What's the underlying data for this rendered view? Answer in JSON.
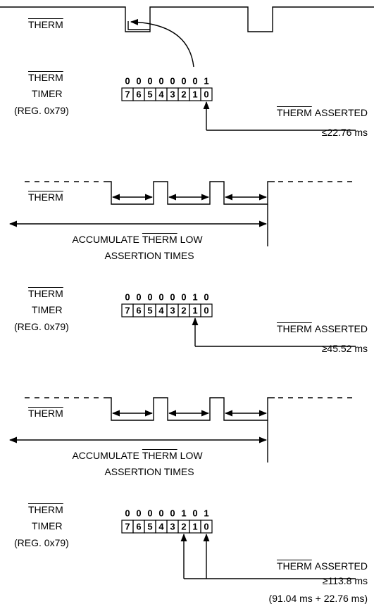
{
  "top_signal": {
    "label": "THERM"
  },
  "registers": [
    {
      "name": "THERM",
      "line2": "TIMER",
      "line3": "(REG. 0x79)",
      "bits": [
        0,
        0,
        0,
        0,
        0,
        0,
        0,
        1
      ],
      "indices": [
        7,
        6,
        5,
        4,
        3,
        2,
        1,
        0
      ],
      "asserted": [
        "THERM",
        "ASSERTED"
      ],
      "time": "≤22.76 ms"
    },
    {
      "name": "THERM",
      "line2": "TIMER",
      "line3": "(REG. 0x79)",
      "bits": [
        0,
        0,
        0,
        0,
        0,
        0,
        1,
        0
      ],
      "indices": [
        7,
        6,
        5,
        4,
        3,
        2,
        1,
        0
      ],
      "asserted": [
        "THERM",
        "ASSERTED"
      ],
      "time": "≥45.52 ms"
    },
    {
      "name": "THERM",
      "line2": "TIMER",
      "line3": "(REG. 0x79)",
      "bits": [
        0,
        0,
        0,
        0,
        0,
        1,
        0,
        1
      ],
      "indices": [
        7,
        6,
        5,
        4,
        3,
        2,
        1,
        0
      ],
      "asserted": [
        "THERM",
        "ASSERTED"
      ],
      "time": "≥113.8 ms",
      "note": "(91.04 ms + 22.76 ms)"
    }
  ],
  "waveforms": [
    {
      "label": "THERM",
      "caption": [
        "ACCUMULATE",
        "THERM",
        "LOW"
      ],
      "caption2": "ASSERTION TIMES"
    },
    {
      "label": "THERM",
      "caption": [
        "ACCUMULATE",
        "THERM",
        "LOW"
      ],
      "caption2": "ASSERTION TIMES"
    }
  ]
}
